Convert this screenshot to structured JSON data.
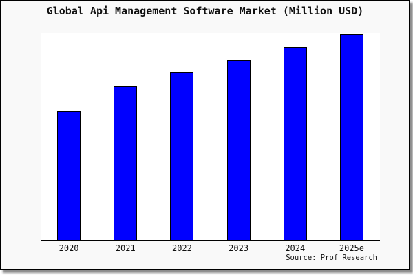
{
  "colors": {
    "bar_fill": "#0000ff",
    "bar_border": "#000000",
    "frame_background": "#f9f9f9",
    "plot_background": "#ffffff",
    "frame_border": "#000000",
    "text": "#111111"
  },
  "chart_data": {
    "type": "bar",
    "title": "Global Api Management Software Market (Million USD)",
    "categories": [
      "2020",
      "2021",
      "2022",
      "2023",
      "2024",
      "2025e"
    ],
    "values": [
      62.7,
      75.0,
      81.5,
      87.7,
      93.7,
      100
    ],
    "value_scale": "relative bar heights, tallest (2025e) = 100; no y-axis tick labels shown",
    "xlabel": "",
    "ylabel": "",
    "ylim": [
      0,
      100.7
    ],
    "grid": false,
    "legend": false,
    "axes_shown": [
      "x"
    ],
    "source_label": "Source: Prof Research"
  }
}
